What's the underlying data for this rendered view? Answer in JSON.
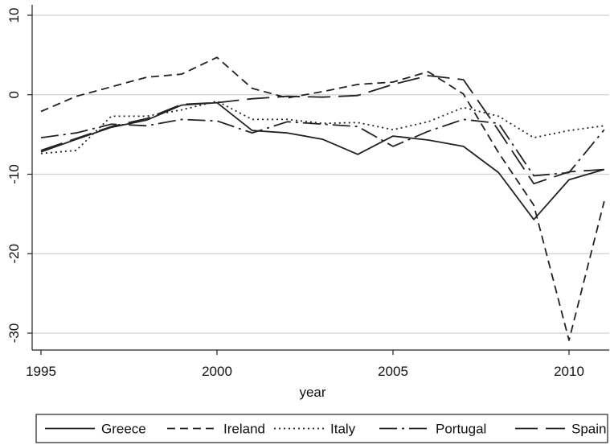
{
  "chart_data": {
    "type": "line",
    "title": "",
    "xlabel": "year",
    "ylabel": "",
    "xlim": [
      1995,
      2011
    ],
    "ylim": [
      -30,
      10
    ],
    "x_ticks": [
      1995,
      2000,
      2005,
      2010
    ],
    "x_tick_labels": [
      "1995",
      "2000",
      "2005",
      "2010"
    ],
    "y_ticks": [
      10,
      0,
      -10,
      -20,
      -30
    ],
    "y_tick_labels": [
      "10",
      "0",
      "-10",
      "-20",
      "-30"
    ],
    "grid": true,
    "legend_position": "bottom",
    "x": [
      1995,
      1996,
      1997,
      1998,
      1999,
      2000,
      2001,
      2002,
      2003,
      2004,
      2005,
      2006,
      2007,
      2008,
      2009,
      2010,
      2011
    ],
    "series": [
      {
        "name": "Greece",
        "dash": "solid",
        "values": [
          -7.2,
          -5.6,
          -4.1,
          -3.2,
          -1.3,
          -1.0,
          -4.5,
          -4.8,
          -5.6,
          -7.5,
          -5.2,
          -5.7,
          -6.5,
          -9.8,
          -15.7,
          -10.7,
          -9.4
        ]
      },
      {
        "name": "Ireland",
        "dash": "dashed",
        "values": [
          -2.1,
          -0.2,
          1.0,
          2.2,
          2.6,
          4.7,
          0.8,
          -0.4,
          0.4,
          1.3,
          1.6,
          2.9,
          0.1,
          -7.3,
          -13.9,
          -30.9,
          -13.4
        ]
      },
      {
        "name": "Italy",
        "dash": "dotted",
        "values": [
          -7.4,
          -7.0,
          -2.7,
          -2.7,
          -1.9,
          -0.8,
          -3.1,
          -3.1,
          -3.6,
          -3.5,
          -4.4,
          -3.4,
          -1.6,
          -2.7,
          -5.4,
          -4.5,
          -3.9
        ]
      },
      {
        "name": "Portugal",
        "dash": "dashdot",
        "values": [
          -5.4,
          -4.8,
          -3.7,
          -3.9,
          -3.1,
          -3.3,
          -4.8,
          -3.4,
          -3.7,
          -4.0,
          -6.5,
          -4.6,
          -3.1,
          -3.6,
          -10.2,
          -9.8,
          -4.4
        ]
      },
      {
        "name": "Spain",
        "dash": "longdash",
        "values": [
          -7.0,
          -5.5,
          -4.0,
          -3.0,
          -1.2,
          -1.0,
          -0.5,
          -0.2,
          -0.3,
          -0.1,
          1.3,
          2.4,
          1.9,
          -4.5,
          -11.2,
          -9.7,
          -9.4
        ]
      }
    ]
  }
}
